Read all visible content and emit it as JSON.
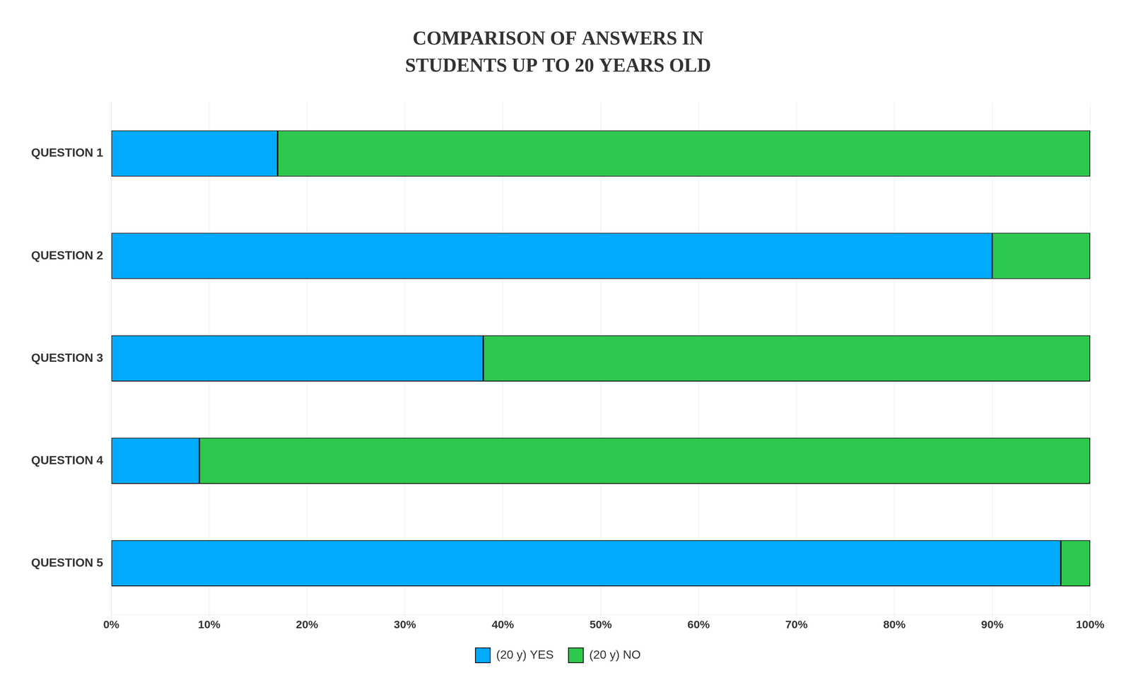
{
  "chart_data": {
    "type": "bar",
    "orientation": "horizontal",
    "stacked": true,
    "title": "COMPARISON OF ANSWERS IN\nSTUDENTS UP TO 20 YEARS OLD",
    "categories": [
      "QUESTION 1",
      "QUESTION 2",
      "QUESTION 3",
      "QUESTION 4",
      "QUESTION 5"
    ],
    "series": [
      {
        "name": "(20 y) YES",
        "color": "#00AAFF",
        "values": [
          17,
          90,
          38,
          9,
          97
        ]
      },
      {
        "name": "(20 y) NO",
        "color": "#2DC84D",
        "values": [
          83,
          10,
          62,
          91,
          3
        ]
      }
    ],
    "xlim": [
      0,
      100
    ],
    "xticks": [
      {
        "value": 0,
        "label": "0%"
      },
      {
        "value": 10,
        "label": "10%"
      },
      {
        "value": 20,
        "label": "20%"
      },
      {
        "value": 30,
        "label": "30%"
      },
      {
        "value": 40,
        "label": "40%"
      },
      {
        "value": 50,
        "label": "50%"
      },
      {
        "value": 60,
        "label": "60%"
      },
      {
        "value": 70,
        "label": "70%"
      },
      {
        "value": 80,
        "label": "80%"
      },
      {
        "value": 90,
        "label": "90%"
      },
      {
        "value": 100,
        "label": "100%"
      }
    ],
    "grid": true,
    "legend": "bottom"
  }
}
